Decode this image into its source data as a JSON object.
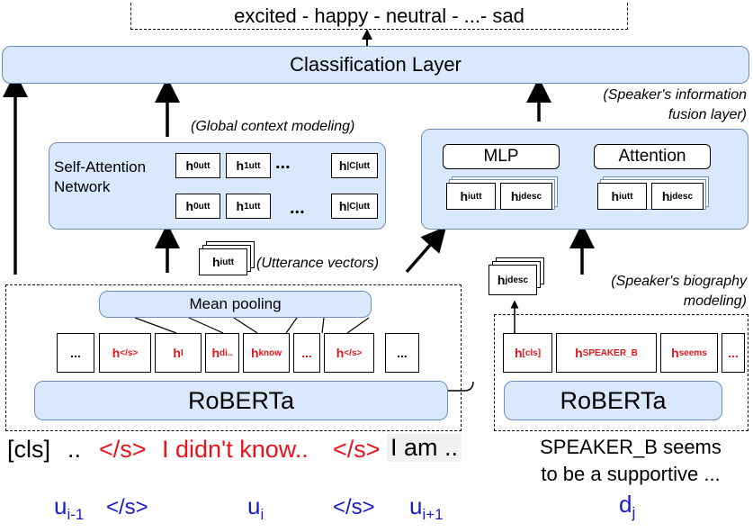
{
  "top_label": "excited - happy - neutral - ...- sad",
  "classification_layer": "Classification Layer",
  "global_context_label": "(Global context modeling)",
  "speaker_fusion_label_1": "(Speaker's information",
  "speaker_fusion_label_2": "fusion layer)",
  "self_attention": {
    "line1": "Self-Attention",
    "line2": "Network"
  },
  "ellipsis": "...",
  "mlp": "MLP",
  "attention": "Attention",
  "utterance_vectors": "(Utterance vectors)",
  "biography_label_1": "(Speaker's biography",
  "biography_label_2": "modeling)",
  "mean_pooling": "Mean pooling",
  "roberta": "RoBERTa",
  "vectors": {
    "h0": {
      "base": "h",
      "sub": "0",
      "sup": "utt"
    },
    "h1": {
      "base": "h",
      "sub": "1",
      "sup": "utt"
    },
    "hC": {
      "base": "h",
      "sub": "|C|",
      "sup": "utt"
    },
    "hi_utt": {
      "base": "h",
      "sub": "i",
      "sup": "utt"
    },
    "hj_desc": {
      "base": "h",
      "sub": "j",
      "sup": "desc"
    }
  },
  "token_hiddens": [
    {
      "base": "...",
      "sub": "",
      "red": false
    },
    {
      "base": "h",
      "sub": "</s>",
      "red": true
    },
    {
      "base": "h",
      "sub": "I",
      "red": true
    },
    {
      "base": "h",
      "sub": "di..",
      "red": true
    },
    {
      "base": "h",
      "sub": "know",
      "red": true
    },
    {
      "base": "...",
      "sub": "",
      "red": true
    },
    {
      "base": "h",
      "sub": "</s>",
      "red": true
    },
    {
      "base": "...",
      "sub": "",
      "red": false
    }
  ],
  "desc_hiddens": [
    {
      "base": "h",
      "sub": "[cls]"
    },
    {
      "base": "h",
      "sub": "SPEAKER_B"
    },
    {
      "base": "h",
      "sub": "seems"
    },
    {
      "base": "...",
      "sub": ""
    }
  ],
  "input_tokens": {
    "cls": "[cls]",
    "prev": "..",
    "sep1": "</s>",
    "utterance": "I didn't know..",
    "sep2": "</s>",
    "next": "I am .."
  },
  "segments": {
    "u_prev": {
      "base": "u",
      "sub": "i-1"
    },
    "sep_a": "</s>",
    "u_i": {
      "base": "u",
      "sub": "i"
    },
    "sep_b": "</s>",
    "u_next": {
      "base": "u",
      "sub": "i+1"
    }
  },
  "description_text_1": "SPEAKER_B seems",
  "description_text_2": "to be a supportive ...",
  "d_j": {
    "base": "d",
    "sub": "j"
  },
  "colors": {
    "box_fill": "#dae8fc",
    "box_border": "#6c8ebf",
    "red": "#e8141c",
    "navy": "#1a1acc"
  }
}
